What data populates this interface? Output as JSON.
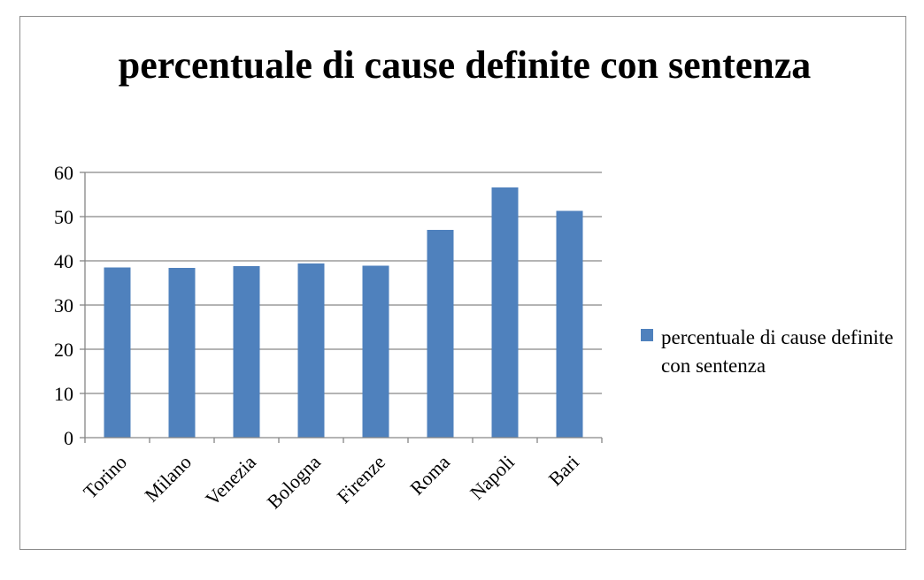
{
  "chart_data": {
    "type": "bar",
    "title": "percentuale di cause definite con sentenza",
    "categories": [
      "Torino",
      "Milano",
      "Venezia",
      "Bologna",
      "Firenze",
      "Roma",
      "Napoli",
      "Bari"
    ],
    "series": [
      {
        "name": "percentuale di cause definite con sentenza",
        "values": [
          38.5,
          38.4,
          38.8,
          39.4,
          38.9,
          47.0,
          56.6,
          51.3
        ]
      }
    ],
    "ylim": [
      0,
      60
    ],
    "yticks": [
      0,
      10,
      20,
      30,
      40,
      50,
      60
    ],
    "grid": true,
    "legend_position": "right",
    "bar_color": "#4f81bd",
    "grid_color": "#868686",
    "axis_color": "#868686"
  }
}
